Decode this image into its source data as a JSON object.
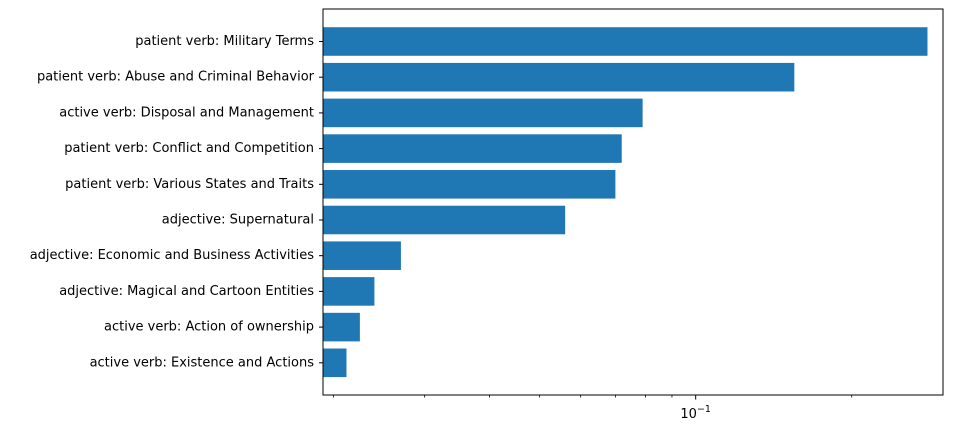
{
  "chart_data": {
    "type": "bar",
    "orientation": "horizontal",
    "x_scale": "log",
    "xlim": [
      0.0191,
      0.3
    ],
    "grid": false,
    "legend": "none",
    "bar_color": "#1f77b4",
    "categories": [
      "patient verb: Military Terms",
      "patient verb: Abuse and Criminal Behavior",
      "active verb: Disposal and Management",
      "patient verb: Conflict and Competition",
      "patient verb: Various States and Traits",
      "adjective: Supernatural",
      "adjective: Economic and Business Activities",
      "adjective: Magical and Cartoon Entities",
      "active verb: Action of ownership",
      "active verb: Existence and Actions"
    ],
    "values": [
      0.28,
      0.155,
      0.079,
      0.072,
      0.07,
      0.056,
      0.027,
      0.024,
      0.0225,
      0.0212
    ],
    "x_tick_labels": [
      {
        "value": 0.1,
        "base": "10",
        "exponent": "−1"
      }
    ],
    "title": "",
    "xlabel": "",
    "ylabel": ""
  }
}
